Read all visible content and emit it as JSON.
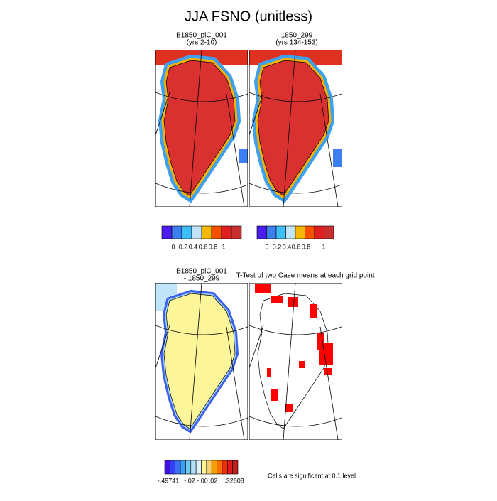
{
  "title": "JJA FSNO (unitless)",
  "panels": [
    {
      "title_lines": [
        "B1850_piC_001",
        "(yrs 2-10)"
      ]
    },
    {
      "title_lines": [
        "1850_299",
        "(yrs 134-153)"
      ]
    },
    {
      "title_lines": [
        "B1850_piC_001",
        "- 1850_299"
      ]
    },
    {
      "title_lines": [
        "T-Test of two Case means at each grid point"
      ]
    }
  ],
  "colorbars": [
    {
      "labels": [
        "0",
        "0.2",
        "0.4",
        "0.6",
        "0.8",
        "1"
      ]
    },
    {
      "labels": [
        "0",
        "0.2",
        "0.4",
        "0.6",
        "0.8",
        "1"
      ]
    },
    {
      "labels": [
        "-.49741",
        "-.02",
        "-.00",
        ".02",
        ".32608"
      ]
    }
  ],
  "note": "Cells are significant at 0.1 level"
}
